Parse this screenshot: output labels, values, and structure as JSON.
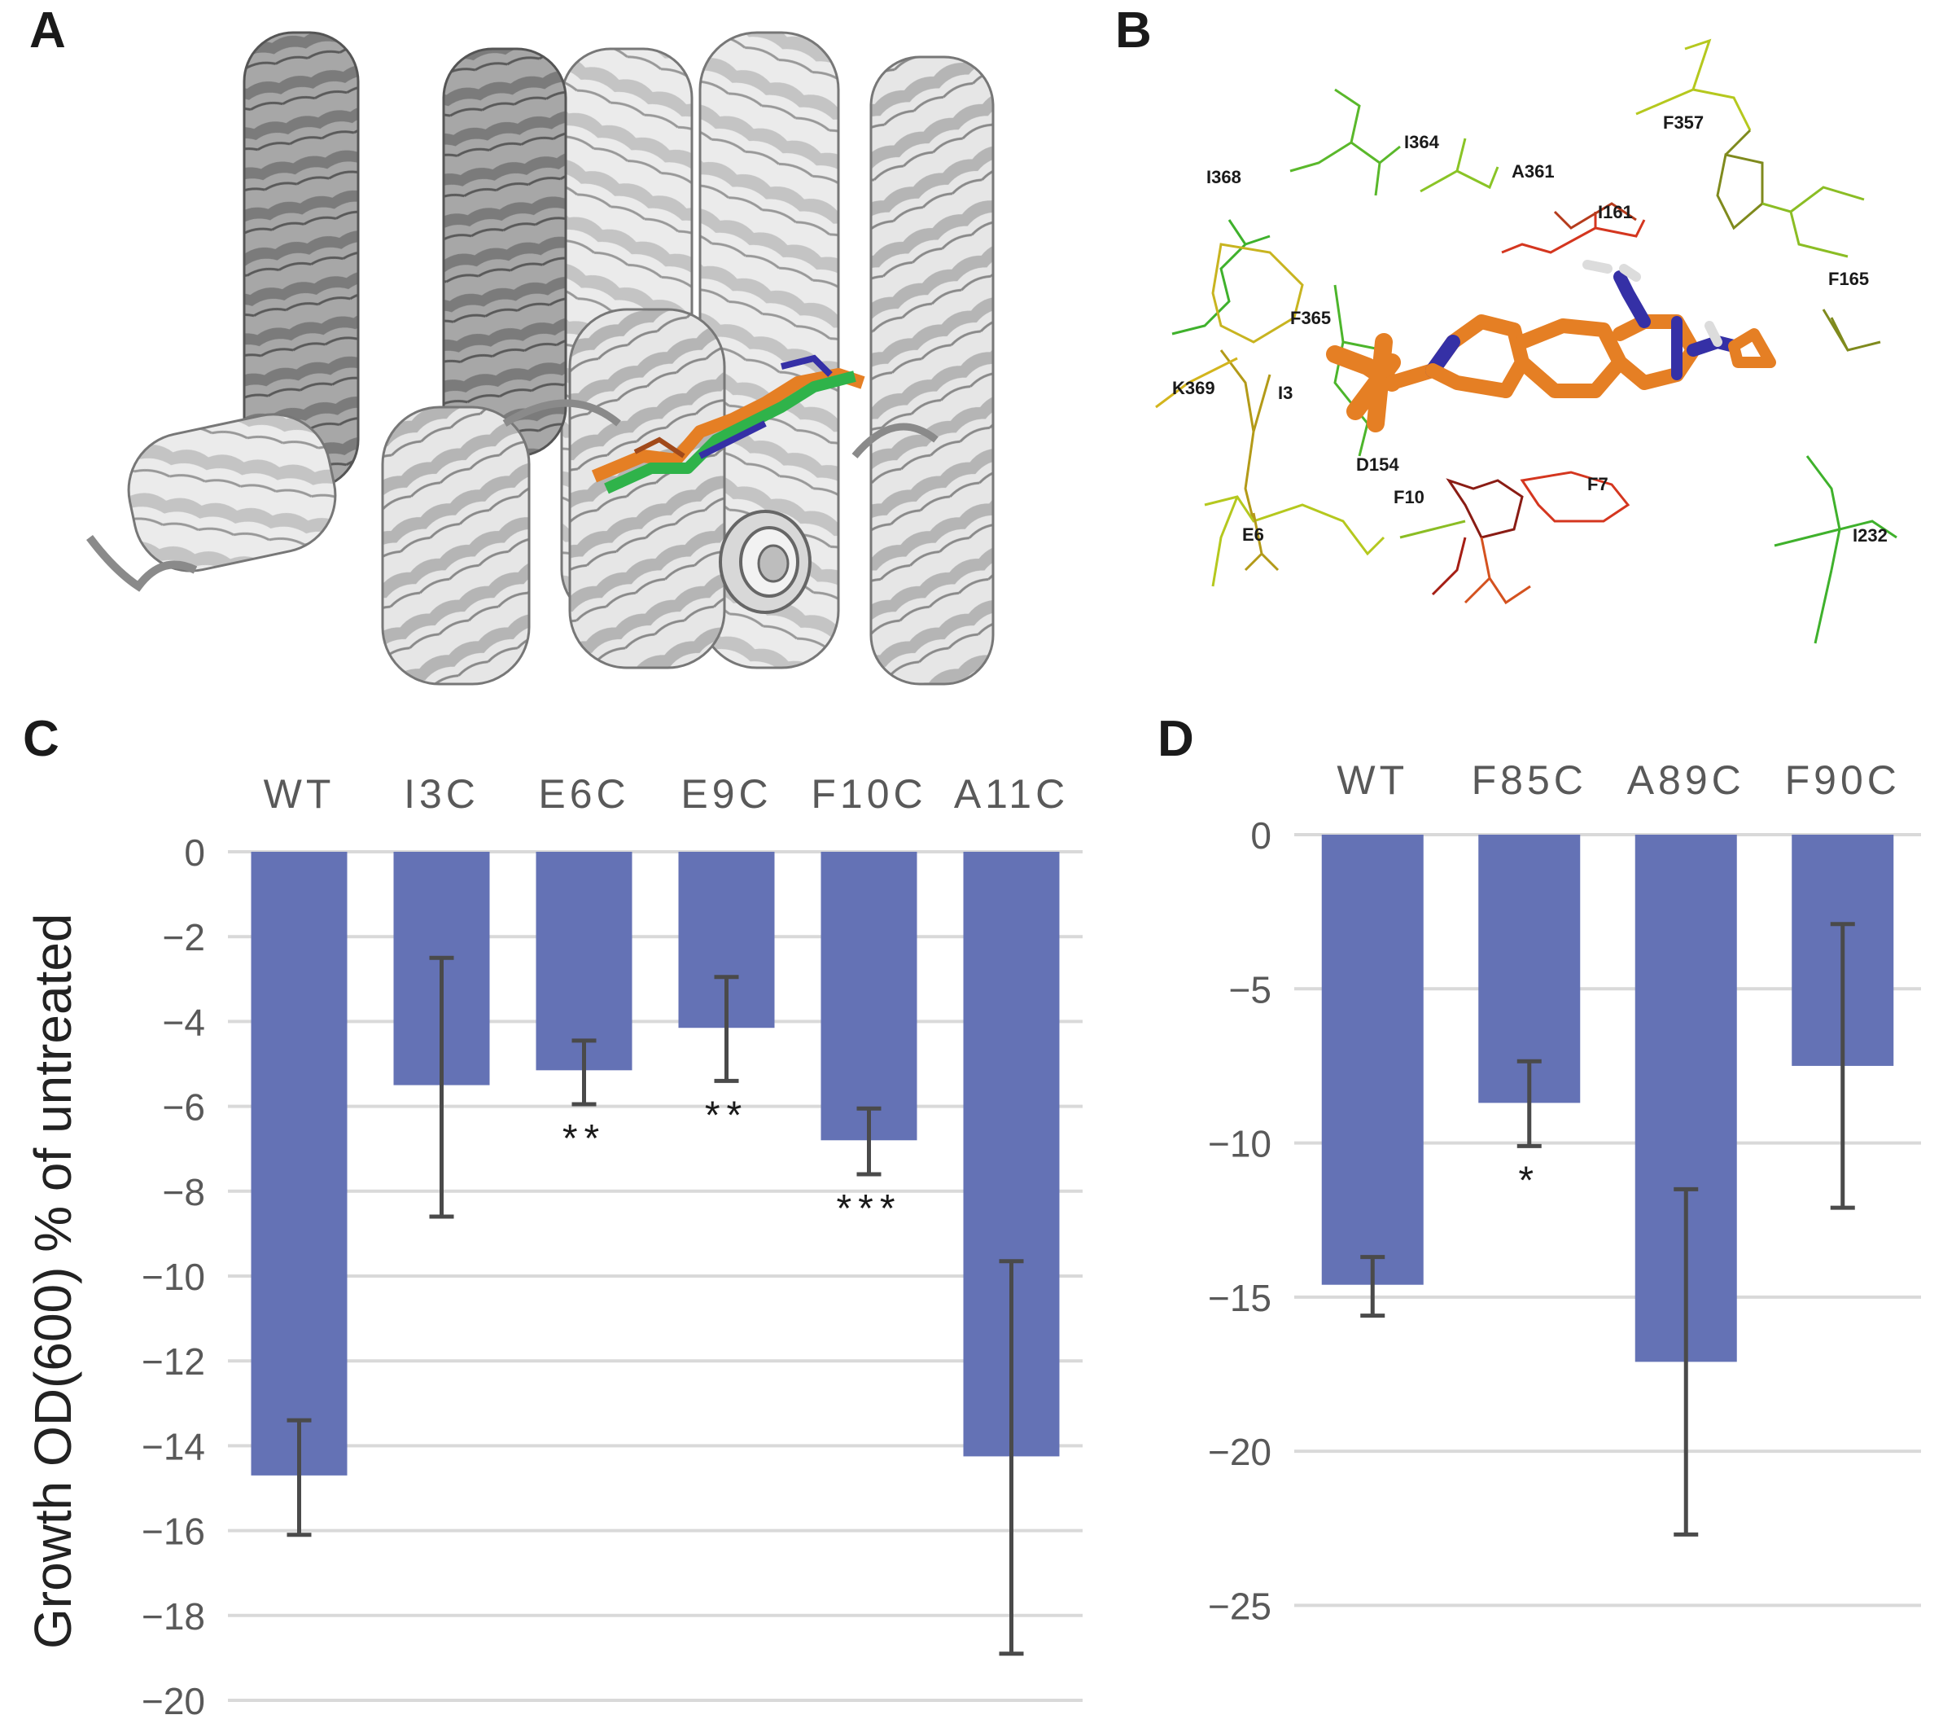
{
  "panels": {
    "a": {
      "letter": "A"
    },
    "b": {
      "letter": "B"
    },
    "c": {
      "letter": "C"
    },
    "d": {
      "letter": "D"
    }
  },
  "structure_b": {
    "residue_labels": [
      "I364",
      "I368",
      "A361",
      "F357",
      "I161",
      "F165",
      "F365",
      "K369",
      "I3",
      "D154",
      "F10",
      "F7",
      "E6",
      "I232"
    ]
  },
  "colors": {
    "bar": "#6472b5",
    "error_bar": "#4a4a4a",
    "grid": "#d9d9d9",
    "text": "#595959",
    "ribbon": "#e4e4e4",
    "ligand_orange": "#e57f24",
    "ligand_green": "#2fb34a",
    "nitrogen": "#3530a6"
  },
  "chart_data": [
    {
      "type": "bar",
      "panel": "C",
      "ylabel": "Growth OD(600) % of untreated",
      "categories": [
        "WT",
        "I3C",
        "E6C",
        "E9C",
        "F10C",
        "A11C"
      ],
      "values": [
        -14.7,
        -5.5,
        -5.15,
        -4.15,
        -6.8,
        -14.25
      ],
      "error_low": [
        -16.1,
        -8.6,
        -5.95,
        -5.4,
        -7.6,
        -18.9
      ],
      "error_high": [
        -13.4,
        -2.5,
        -4.45,
        -2.95,
        -6.05,
        -9.65
      ],
      "significance": [
        "",
        "",
        "**",
        "**",
        "***",
        ""
      ],
      "ylim": [
        -20,
        0
      ],
      "yticks": [
        0,
        -2,
        -4,
        -6,
        -8,
        -10,
        -12,
        -14,
        -16,
        -18,
        -20
      ],
      "ytick_labels": [
        "0",
        "−2",
        "−4",
        "−6",
        "−8",
        "−10",
        "−12",
        "−14",
        "−16",
        "−18",
        "−20"
      ],
      "grid": true
    },
    {
      "type": "bar",
      "panel": "D",
      "categories": [
        "WT",
        "F85C",
        "A89C",
        "F90C"
      ],
      "values": [
        -14.6,
        -8.7,
        -17.1,
        -7.5
      ],
      "error_low": [
        -15.6,
        -10.1,
        -22.7,
        -12.1
      ],
      "error_high": [
        -13.7,
        -7.35,
        -11.5,
        -2.9
      ],
      "significance": [
        "",
        "*",
        "",
        ""
      ],
      "ylim": [
        -28,
        0
      ],
      "yticks": [
        0,
        -5,
        -10,
        -15,
        -20,
        -25
      ],
      "ytick_labels": [
        "0",
        "−5",
        "−10",
        "−15",
        "−20",
        "−25"
      ],
      "grid": true
    }
  ]
}
